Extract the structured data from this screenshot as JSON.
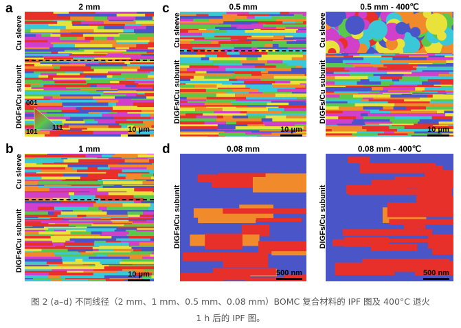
{
  "panels": {
    "a": {
      "letter": "a",
      "title": "2 mm",
      "upper_label": "Cu sleeve",
      "lower_label": "DIGFs/Cu subunit",
      "scale": "10 μm"
    },
    "b": {
      "letter": "b",
      "title": "1 mm",
      "upper_label": "Cu sleeve",
      "lower_label": "DIGFs/Cu subunit",
      "scale": "10 μm"
    },
    "c": {
      "letter": "c",
      "left": {
        "title": "0.5 mm",
        "upper_label": "Cu sleeve",
        "lower_label": "DIGFs/Cu subunit",
        "scale": "10 μm"
      },
      "right": {
        "title": "0.5 mm - 400℃",
        "upper_label": "Cu sleeve",
        "lower_label": "DIGFs/Cu subunit",
        "scale": "10 μm"
      }
    },
    "d": {
      "letter": "d",
      "left": {
        "title": "0.08 mm",
        "side_label": "DIGFs/Cu subunit",
        "scale": "500 nm"
      },
      "right": {
        "title": "0.08 mm - 400℃",
        "side_label": "DIGFs/Cu subunit",
        "scale": "500 nm"
      }
    }
  },
  "ipf_key": {
    "top": "001",
    "left": "101",
    "right": "111"
  },
  "caption": {
    "line1": "图 2 (a–d) 不同线径（2 mm、1 mm、0.5 mm、0.08 mm）BOMC 复合材料的 IPF 图及 400°C 退火",
    "line2": "1 h 后的 IPF 图。"
  },
  "colors": {
    "red": "#e8302a",
    "blue": "#4a55c8",
    "green": "#5ac84a",
    "yellow": "#e8e23a",
    "magenta": "#d040c8",
    "cyan": "#3ac8d8",
    "orange": "#f08a2a"
  }
}
